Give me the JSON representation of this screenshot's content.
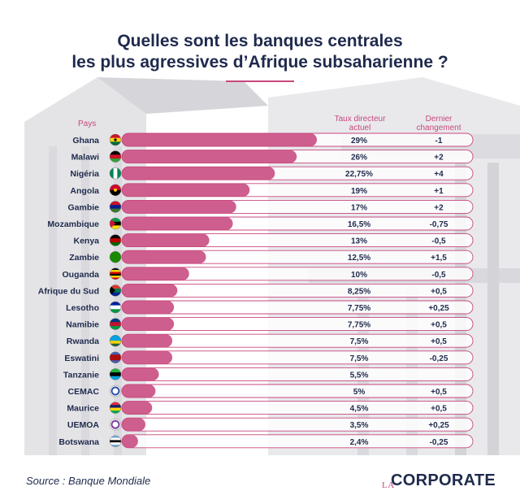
{
  "title": {
    "line1": "Quelles sont les banques centrales",
    "line2": "les plus agressives d’Afrique subsaharienne ?"
  },
  "headers": {
    "country": "Pays",
    "rate": "Taux directeur actuel",
    "change": "Dernier changement"
  },
  "footer": {
    "source": "Source : Banque Mondiale",
    "logo_prefix": "LA",
    "logo_main": "CORPORATE"
  },
  "colors": {
    "bar": "#c7487d",
    "title": "#1f2a4d",
    "accent": "#c7487d"
  },
  "chart_data": {
    "type": "bar",
    "orientation": "horizontal",
    "categories": [
      "Ghana",
      "Malawi",
      "Nigéria",
      "Angola",
      "Gambie",
      "Mozambique",
      "Kenya",
      "Zambie",
      "Ouganda",
      "Afrique du Sud",
      "Lesotho",
      "Namibie",
      "Rwanda",
      "Eswatini",
      "Tanzanie",
      "CEMAC",
      "Maurice",
      "UEMOA",
      "Botswana"
    ],
    "values": [
      29,
      26,
      22.75,
      19,
      17,
      16.5,
      13,
      12.5,
      10,
      8.25,
      7.75,
      7.75,
      7.5,
      7.5,
      5.5,
      5,
      4.5,
      3.5,
      2.4
    ],
    "rate_labels": [
      "29%",
      "26%",
      "22,75%",
      "19%",
      "17%",
      "16,5%",
      "13%",
      "12,5%",
      "10%",
      "8,25%",
      "7,75%",
      "7,75%",
      "7,5%",
      "7,5%",
      "5,5%",
      "5%",
      "4,5%",
      "3,5%",
      "2,4%"
    ],
    "change_labels": [
      "-1",
      "+2",
      "+4",
      "+1",
      "+2",
      "-0,75",
      "-0,5",
      "+1,5",
      "-0,5",
      "+0,5",
      "+0,25",
      "+0,5",
      "+0,5",
      "-0,25",
      "",
      "+0,5",
      "+0,5",
      "+0,25",
      "-0,25"
    ],
    "flag_icons": [
      "ghana-flag-icon",
      "malawi-flag-icon",
      "nigeria-flag-icon",
      "angola-flag-icon",
      "gambia-flag-icon",
      "mozambique-flag-icon",
      "kenya-flag-icon",
      "zambia-flag-icon",
      "uganda-flag-icon",
      "south-africa-flag-icon",
      "lesotho-flag-icon",
      "namibia-flag-icon",
      "rwanda-flag-icon",
      "eswatini-flag-icon",
      "tanzania-flag-icon",
      "cemac-flag-icon",
      "mauritius-flag-icon",
      "uemoa-flag-icon",
      "botswana-flag-icon"
    ],
    "xlim": [
      0,
      29
    ],
    "grid": false,
    "legend": "none"
  }
}
